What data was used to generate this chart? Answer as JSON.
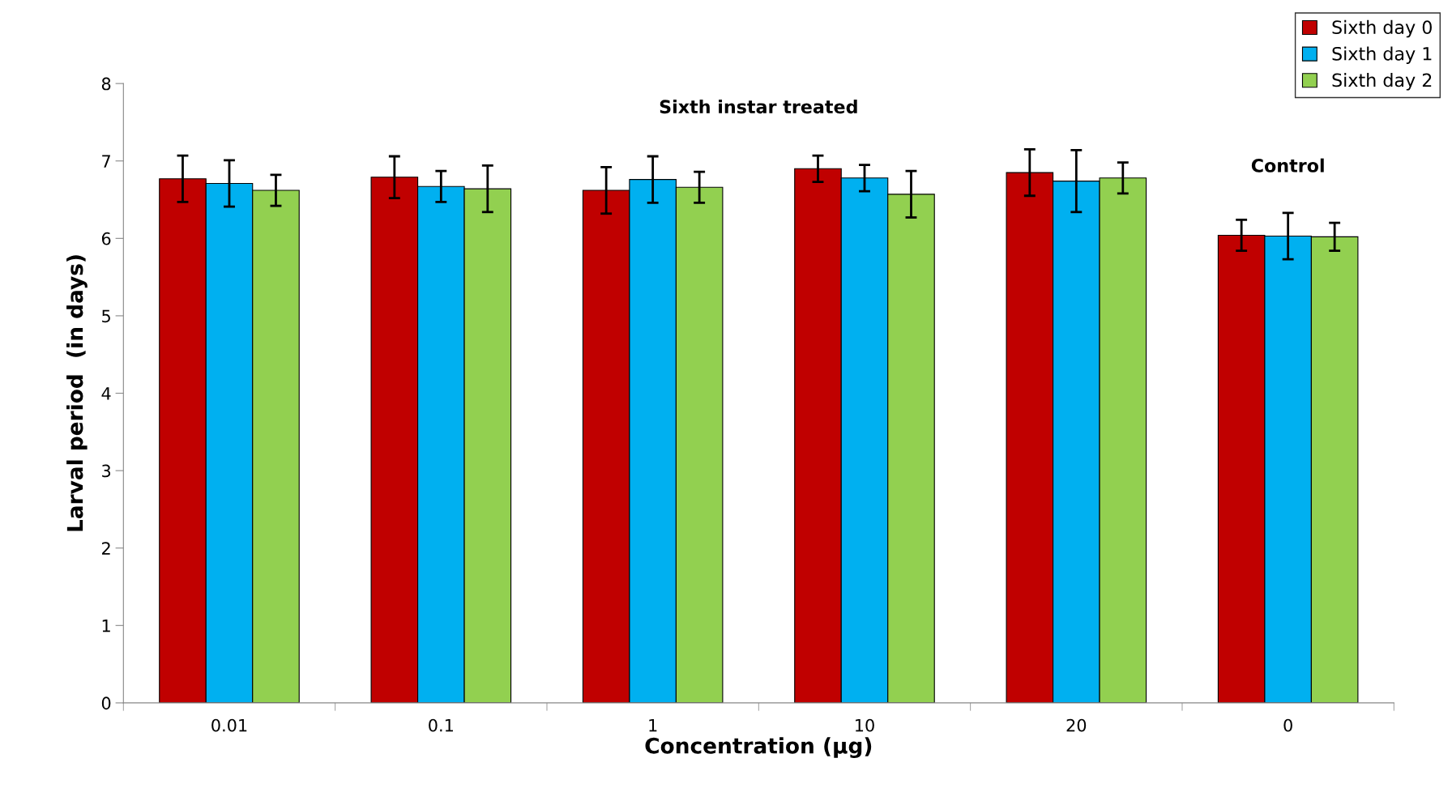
{
  "chart_data": {
    "type": "bar",
    "xlabel": "Concentration (µg)",
    "ylabel": "Larval period  (in days)",
    "categories": [
      "0.01",
      "0.1",
      "1",
      "10",
      "20",
      "0"
    ],
    "series": [
      {
        "name": "Sixth day 0",
        "color": "#c00000",
        "values": [
          6.77,
          6.79,
          6.62,
          6.9,
          6.85,
          6.04
        ],
        "errors": [
          0.3,
          0.27,
          0.3,
          0.17,
          0.3,
          0.2
        ]
      },
      {
        "name": "Sixth day 1",
        "color": "#00b0f0",
        "values": [
          6.71,
          6.67,
          6.76,
          6.78,
          6.74,
          6.03
        ],
        "errors": [
          0.3,
          0.2,
          0.3,
          0.17,
          0.4,
          0.3
        ]
      },
      {
        "name": "Sixth day 2",
        "color": "#92d050",
        "values": [
          6.62,
          6.64,
          6.66,
          6.57,
          6.78,
          6.02
        ],
        "errors": [
          0.2,
          0.3,
          0.2,
          0.3,
          0.2,
          0.18
        ]
      }
    ],
    "annotations": [
      "Sixth instar treated",
      "Control"
    ],
    "ylim": [
      0,
      8
    ],
    "yticks": [
      0,
      1,
      2,
      3,
      4,
      5,
      6,
      7,
      8
    ],
    "grid": false,
    "legend": "top right"
  }
}
